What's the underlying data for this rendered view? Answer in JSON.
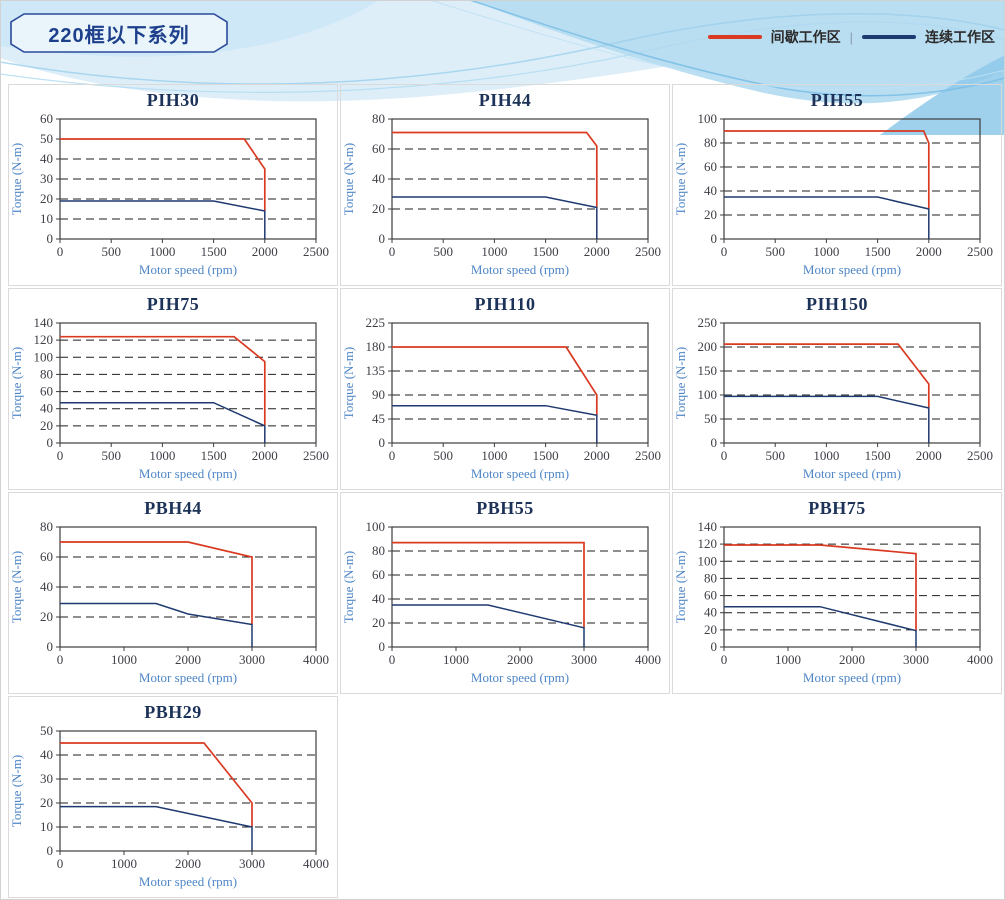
{
  "page": {
    "badge_label": "220框以下系列",
    "legend": {
      "intermittent_label": "间歇工作区",
      "continuous_label": "连续工作区",
      "separator": "|",
      "intermittent_color": "#d93a21",
      "continuous_color": "#1f3a70"
    }
  },
  "chart_data": [
    {
      "type": "line",
      "title": "PIH30",
      "xlabel": "Motor speed (rpm)",
      "ylabel": "Torque (N-m)",
      "xlim": [
        0,
        2500
      ],
      "xstep": 500,
      "ylim": [
        0,
        60
      ],
      "ystep": 10,
      "grid": "dashed-horizontal",
      "legend_position": "page-top-right",
      "series": [
        {
          "key": "intermittent",
          "name": "间歇工作区",
          "color": "#d93a21",
          "width": 1.7,
          "points": [
            [
              0,
              50
            ],
            [
              1800,
              50
            ],
            [
              2000,
              35
            ],
            [
              2000,
              14
            ]
          ]
        },
        {
          "key": "continuous",
          "name": "连续工作区",
          "color": "#1f3a70",
          "width": 1.5,
          "points": [
            [
              0,
              19
            ],
            [
              1500,
              19
            ],
            [
              2000,
              14
            ],
            [
              2000,
              0
            ]
          ]
        }
      ]
    },
    {
      "type": "line",
      "title": "PIH44",
      "xlabel": "Motor speed (rpm)",
      "ylabel": "Torque (N-m)",
      "xlim": [
        0,
        2500
      ],
      "xstep": 500,
      "ylim": [
        0,
        80
      ],
      "ystep": 20,
      "grid": "dashed-horizontal",
      "legend_position": "page-top-right",
      "series": [
        {
          "key": "intermittent",
          "name": "间歇工作区",
          "color": "#d93a21",
          "width": 1.7,
          "points": [
            [
              0,
              71
            ],
            [
              1900,
              71
            ],
            [
              2000,
              62
            ],
            [
              2000,
              21
            ]
          ]
        },
        {
          "key": "continuous",
          "name": "连续工作区",
          "color": "#1f3a70",
          "width": 1.5,
          "points": [
            [
              0,
              28
            ],
            [
              1500,
              28
            ],
            [
              2000,
              21
            ],
            [
              2000,
              0
            ]
          ]
        }
      ]
    },
    {
      "type": "line",
      "title": "PIH55",
      "xlabel": "Motor speed (rpm)",
      "ylabel": "Torque (N-m)",
      "xlim": [
        0,
        2500
      ],
      "xstep": 500,
      "ylim": [
        0,
        100
      ],
      "ystep": 20,
      "grid": "dashed-horizontal",
      "legend_position": "page-top-right",
      "series": [
        {
          "key": "intermittent",
          "name": "间歇工作区",
          "color": "#d93a21",
          "width": 1.7,
          "points": [
            [
              0,
              90
            ],
            [
              1950,
              90
            ],
            [
              2000,
              80
            ],
            [
              2000,
              25
            ]
          ]
        },
        {
          "key": "continuous",
          "name": "连续工作区",
          "color": "#1f3a70",
          "width": 1.5,
          "points": [
            [
              0,
              35
            ],
            [
              1500,
              35
            ],
            [
              2000,
              25
            ],
            [
              2000,
              0
            ]
          ]
        }
      ]
    },
    {
      "type": "line",
      "title": "PIH75",
      "xlabel": "Motor speed (rpm)",
      "ylabel": "Torque (N-m)",
      "xlim": [
        0,
        2500
      ],
      "xstep": 500,
      "ylim": [
        0,
        140
      ],
      "ystep": 20,
      "grid": "dashed-horizontal",
      "legend_position": "page-top-right",
      "series": [
        {
          "key": "intermittent",
          "name": "间歇工作区",
          "color": "#d93a21",
          "width": 1.7,
          "points": [
            [
              0,
              124
            ],
            [
              1700,
              124
            ],
            [
              2000,
              95
            ],
            [
              2000,
              20
            ]
          ]
        },
        {
          "key": "continuous",
          "name": "连续工作区",
          "color": "#1f3a70",
          "width": 1.5,
          "points": [
            [
              0,
              47
            ],
            [
              1500,
              47
            ],
            [
              2000,
              20
            ],
            [
              2000,
              0
            ]
          ]
        }
      ]
    },
    {
      "type": "line",
      "title": "PIH110",
      "xlabel": "Motor speed (rpm)",
      "ylabel": "Torque (N-m)",
      "xlim": [
        0,
        2500
      ],
      "xstep": 500,
      "ylim": [
        0,
        225
      ],
      "ystep": 45,
      "grid": "dashed-horizontal",
      "legend_position": "page-top-right",
      "series": [
        {
          "key": "intermittent",
          "name": "间歇工作区",
          "color": "#d93a21",
          "width": 1.7,
          "points": [
            [
              0,
              180
            ],
            [
              1700,
              180
            ],
            [
              2000,
              90
            ],
            [
              2000,
              52
            ]
          ]
        },
        {
          "key": "continuous",
          "name": "连续工作区",
          "color": "#1f3a70",
          "width": 1.5,
          "points": [
            [
              0,
              70
            ],
            [
              1500,
              70
            ],
            [
              2000,
              52
            ],
            [
              2000,
              0
            ]
          ]
        }
      ]
    },
    {
      "type": "line",
      "title": "PIH150",
      "xlabel": "Motor speed (rpm)",
      "ylabel": "Torque (N-m)",
      "xlim": [
        0,
        2500
      ],
      "xstep": 500,
      "ylim": [
        0,
        250
      ],
      "ystep": 50,
      "grid": "dashed-horizontal",
      "legend_position": "page-top-right",
      "series": [
        {
          "key": "intermittent",
          "name": "间歇工作区",
          "color": "#d93a21",
          "width": 1.7,
          "points": [
            [
              0,
              206
            ],
            [
              1700,
              206
            ],
            [
              2000,
              123
            ],
            [
              2000,
              73
            ]
          ]
        },
        {
          "key": "continuous",
          "name": "连续工作区",
          "color": "#1f3a70",
          "width": 1.5,
          "points": [
            [
              0,
              97
            ],
            [
              1500,
              97
            ],
            [
              2000,
              73
            ],
            [
              2000,
              0
            ]
          ]
        }
      ]
    },
    {
      "type": "line",
      "title": "PBH44",
      "xlabel": "Motor speed (rpm)",
      "ylabel": "Torque (N-m)",
      "xlim": [
        0,
        4000
      ],
      "xstep": 1000,
      "ylim": [
        0,
        80
      ],
      "ystep": 20,
      "grid": "dashed-horizontal",
      "legend_position": "page-top-right",
      "series": [
        {
          "key": "intermittent",
          "name": "间歇工作区",
          "color": "#d93a21",
          "width": 1.7,
          "points": [
            [
              0,
              70
            ],
            [
              2000,
              70
            ],
            [
              3000,
              60
            ],
            [
              3000,
              15
            ]
          ]
        },
        {
          "key": "continuous",
          "name": "连续工作区",
          "color": "#1f3a70",
          "width": 1.5,
          "points": [
            [
              0,
              29
            ],
            [
              1500,
              29
            ],
            [
              2000,
              22
            ],
            [
              3000,
              15
            ],
            [
              3000,
              0
            ]
          ]
        }
      ]
    },
    {
      "type": "line",
      "title": "PBH55",
      "xlabel": "Motor speed (rpm)",
      "ylabel": "Torque (N-m)",
      "xlim": [
        0,
        4000
      ],
      "xstep": 1000,
      "ylim": [
        0,
        100
      ],
      "ystep": 20,
      "grid": "dashed-horizontal",
      "legend_position": "page-top-right",
      "series": [
        {
          "key": "intermittent",
          "name": "间歇工作区",
          "color": "#d93a21",
          "width": 1.7,
          "points": [
            [
              0,
              87
            ],
            [
              3000,
              87
            ],
            [
              3000,
              16
            ]
          ]
        },
        {
          "key": "continuous",
          "name": "连续工作区",
          "color": "#1f3a70",
          "width": 1.5,
          "points": [
            [
              0,
              35
            ],
            [
              1500,
              35
            ],
            [
              3000,
              16
            ],
            [
              3000,
              0
            ]
          ]
        }
      ]
    },
    {
      "type": "line",
      "title": "PBH75",
      "xlabel": "Motor speed (rpm)",
      "ylabel": "Torque (N-m)",
      "xlim": [
        0,
        4000
      ],
      "xstep": 1000,
      "ylim": [
        0,
        140
      ],
      "ystep": 20,
      "grid": "dashed-horizontal",
      "legend_position": "page-top-right",
      "series": [
        {
          "key": "intermittent",
          "name": "间歇工作区",
          "color": "#d93a21",
          "width": 1.7,
          "points": [
            [
              0,
              119
            ],
            [
              1500,
              119
            ],
            [
              3000,
              109
            ],
            [
              3000,
              19
            ]
          ]
        },
        {
          "key": "continuous",
          "name": "连续工作区",
          "color": "#1f3a70",
          "width": 1.5,
          "points": [
            [
              0,
              47
            ],
            [
              1500,
              47
            ],
            [
              3000,
              19
            ],
            [
              3000,
              0
            ]
          ]
        }
      ]
    },
    {
      "type": "line",
      "title": "PBH29",
      "xlabel": "Motor speed (rpm)",
      "ylabel": "Torque (N-m)",
      "xlim": [
        0,
        4000
      ],
      "xstep": 1000,
      "ylim": [
        0,
        50
      ],
      "ystep": 10,
      "grid": "dashed-horizontal",
      "legend_position": "page-top-right",
      "series": [
        {
          "key": "intermittent",
          "name": "间歇工作区",
          "color": "#d93a21",
          "width": 1.7,
          "points": [
            [
              0,
              45
            ],
            [
              2250,
              45
            ],
            [
              3000,
              20
            ],
            [
              3000,
              10
            ]
          ]
        },
        {
          "key": "continuous",
          "name": "连续工作区",
          "color": "#1f3a70",
          "width": 1.5,
          "points": [
            [
              0,
              18.5
            ],
            [
              1500,
              18.5
            ],
            [
              3000,
              10
            ],
            [
              3000,
              0
            ]
          ]
        }
      ]
    }
  ]
}
